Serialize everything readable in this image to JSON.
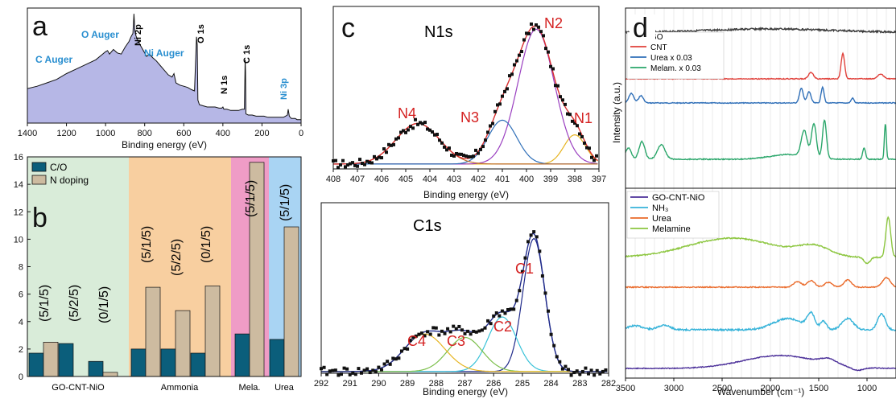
{
  "colors": {
    "survey_fill": "#b6b7e6",
    "peak_red": "#d42020",
    "auger_blue": "#2a8fd0",
    "co_bar": "#0b5e7b",
    "n_bar": "#cdbba0",
    "bg_green": "#d9ecd9",
    "bg_orange": "#f8cfa0",
    "bg_pink": "#ef9cc6",
    "bg_blue": "#a9d4f3",
    "GO": "#3a3a3a",
    "CNT": "#e0403a",
    "Urea": "#2f6fb8",
    "Melam": "#2aa66a",
    "GOCNTNiO": "#4b2f99",
    "NH3": "#36b3d9",
    "UreaB": "#ea6a2a",
    "Melamine": "#8cc63f",
    "fit_red": "#d83030",
    "fit_purple": "#9a3fc0",
    "fit_blue": "#2f6fb8",
    "fit_orange": "#e2a520",
    "fit_navy": "#1f2a8a",
    "fit_cyan": "#39c2d8",
    "fit_green": "#7bbf4a",
    "fit_yellow": "#e6b420",
    "fit_brown": "#c07030"
  },
  "chart_data": [
    {
      "panel": "a",
      "type": "area",
      "xlabel": "Binding energy (eV)",
      "xlim": [
        1400,
        0
      ],
      "x_ticks": [
        "1400",
        "1200",
        "1000",
        "800",
        "600",
        "400",
        "200",
        "0"
      ],
      "peak_labels": [
        "C Auger",
        "O Auger",
        "Ni 2p",
        "Ni Auger",
        "O 1s",
        "N 1s",
        "C 1s",
        "Ni 3p"
      ],
      "survey_profile": {
        "x": [
          1400,
          1350,
          1300,
          1250,
          1200,
          1150,
          1100,
          1050,
          1000,
          990,
          980,
          960,
          940,
          920,
          900,
          880,
          870,
          860,
          855,
          850,
          845,
          830,
          810,
          790,
          775,
          760,
          740,
          720,
          700,
          680,
          660,
          650,
          640,
          620,
          600,
          580,
          560,
          545,
          535,
          531,
          528,
          520,
          500,
          480,
          460,
          440,
          420,
          405,
          400,
          395,
          380,
          360,
          340,
          320,
          300,
          290,
          286,
          284,
          282,
          270,
          250,
          230,
          210,
          190,
          170,
          150,
          130,
          110,
          90,
          80,
          70,
          66,
          60,
          50,
          40,
          30,
          20,
          10,
          0
        ],
        "y": [
          0.3,
          0.32,
          0.35,
          0.38,
          0.43,
          0.47,
          0.51,
          0.55,
          0.62,
          0.63,
          0.6,
          0.64,
          0.61,
          0.6,
          0.66,
          0.71,
          0.75,
          0.78,
          0.95,
          0.8,
          0.76,
          0.7,
          0.64,
          0.58,
          0.6,
          0.57,
          0.54,
          0.5,
          0.46,
          0.42,
          0.4,
          0.43,
          0.35,
          0.33,
          0.32,
          0.31,
          0.29,
          0.28,
          0.75,
          0.68,
          0.2,
          0.16,
          0.15,
          0.14,
          0.14,
          0.14,
          0.13,
          0.13,
          0.14,
          0.12,
          0.12,
          0.11,
          0.11,
          0.11,
          0.12,
          0.12,
          0.55,
          0.45,
          0.08,
          0.07,
          0.07,
          0.06,
          0.06,
          0.06,
          0.05,
          0.05,
          0.05,
          0.05,
          0.05,
          0.06,
          0.07,
          0.12,
          0.06,
          0.04,
          0.04,
          0.04,
          0.03,
          0.03,
          0.03
        ]
      }
    },
    {
      "panel": "b",
      "type": "bar",
      "ylim": [
        0,
        16
      ],
      "y_ticks": [
        "0",
        "2",
        "4",
        "6",
        "8",
        "10",
        "12",
        "14",
        "16"
      ],
      "series": [
        {
          "name": "C/O",
          "values": [
            1.7,
            2.4,
            1.1,
            2.0,
            2.0,
            1.7,
            3.1,
            2.7
          ]
        },
        {
          "name": "N doping",
          "values": [
            2.5,
            0,
            0.3,
            6.5,
            4.8,
            6.6,
            15.6,
            10.9
          ]
        }
      ],
      "bar_labels": [
        "(5/1/5)",
        "(5/2/5)",
        "(0/1/5)",
        "(5/1/5)",
        "(5/2/5)",
        "(0/1/5)",
        "(5/1/5)",
        "(5/1/5)"
      ],
      "groups": [
        "GO-CNT-NiO",
        "Ammonia",
        "Mela.",
        "Urea"
      ],
      "legend": "top-left"
    },
    {
      "panel": "c-N1s",
      "type": "scatter",
      "title": "N1s",
      "xlabel": "Binding energy (eV)",
      "xlim": [
        408,
        397
      ],
      "x_ticks": [
        "408",
        "407",
        "406",
        "405",
        "404",
        "403",
        "402",
        "401",
        "400",
        "399",
        "398",
        "397"
      ],
      "peaks": [
        {
          "name": "N1",
          "center": 398.0,
          "height": 0.18
        },
        {
          "name": "N2",
          "center": 399.6,
          "height": 0.83
        },
        {
          "name": "N3",
          "center": 401.0,
          "height": 0.27
        },
        {
          "name": "N4",
          "center": 404.5,
          "height": 0.25
        }
      ],
      "baseline": 0.03
    },
    {
      "panel": "c-C1s",
      "type": "scatter",
      "title": "C1s",
      "xlabel": "Binding energy (eV)",
      "xlim": [
        292,
        282
      ],
      "x_ticks": [
        "292",
        "291",
        "290",
        "289",
        "288",
        "287",
        "286",
        "285",
        "284",
        "283",
        "282"
      ],
      "peaks": [
        {
          "name": "C1",
          "center": 284.6,
          "height": 0.78
        },
        {
          "name": "C2",
          "center": 285.7,
          "height": 0.32
        },
        {
          "name": "C3",
          "center": 287.0,
          "height": 0.2
        },
        {
          "name": "C4",
          "center": 288.4,
          "height": 0.22
        }
      ],
      "baseline": 0.01
    },
    {
      "panel": "d",
      "type": "line",
      "ylabel": "Intensity (a.u.)",
      "xlabel": "Wavenumber (cm⁻¹)",
      "xlim": [
        3500,
        700
      ],
      "x_ticks": [
        "3500",
        "3000",
        "2500",
        "2000",
        "1500",
        "1000"
      ],
      "legend_top": [
        "GO",
        "CNT",
        "Urea x 0.03",
        "Melam. x 0.03"
      ],
      "legend_bottom": [
        "GO-CNT-NiO",
        "NH₃",
        "Urea",
        "Melamine"
      ]
    }
  ],
  "labels": {
    "panel_a": "a",
    "panel_b": "b",
    "panel_c": "c",
    "panel_d": "d",
    "b_group1": "GO-CNT-NiO",
    "b_group2": "Ammonia",
    "b_group3": "Mela.",
    "b_group4": "Urea",
    "b_legend_co": "C/O",
    "b_legend_n": "N doping",
    "d_ylabel": "Intensity (a.u.)",
    "d_xlabel": "Wavenumber (cm⁻¹)"
  }
}
